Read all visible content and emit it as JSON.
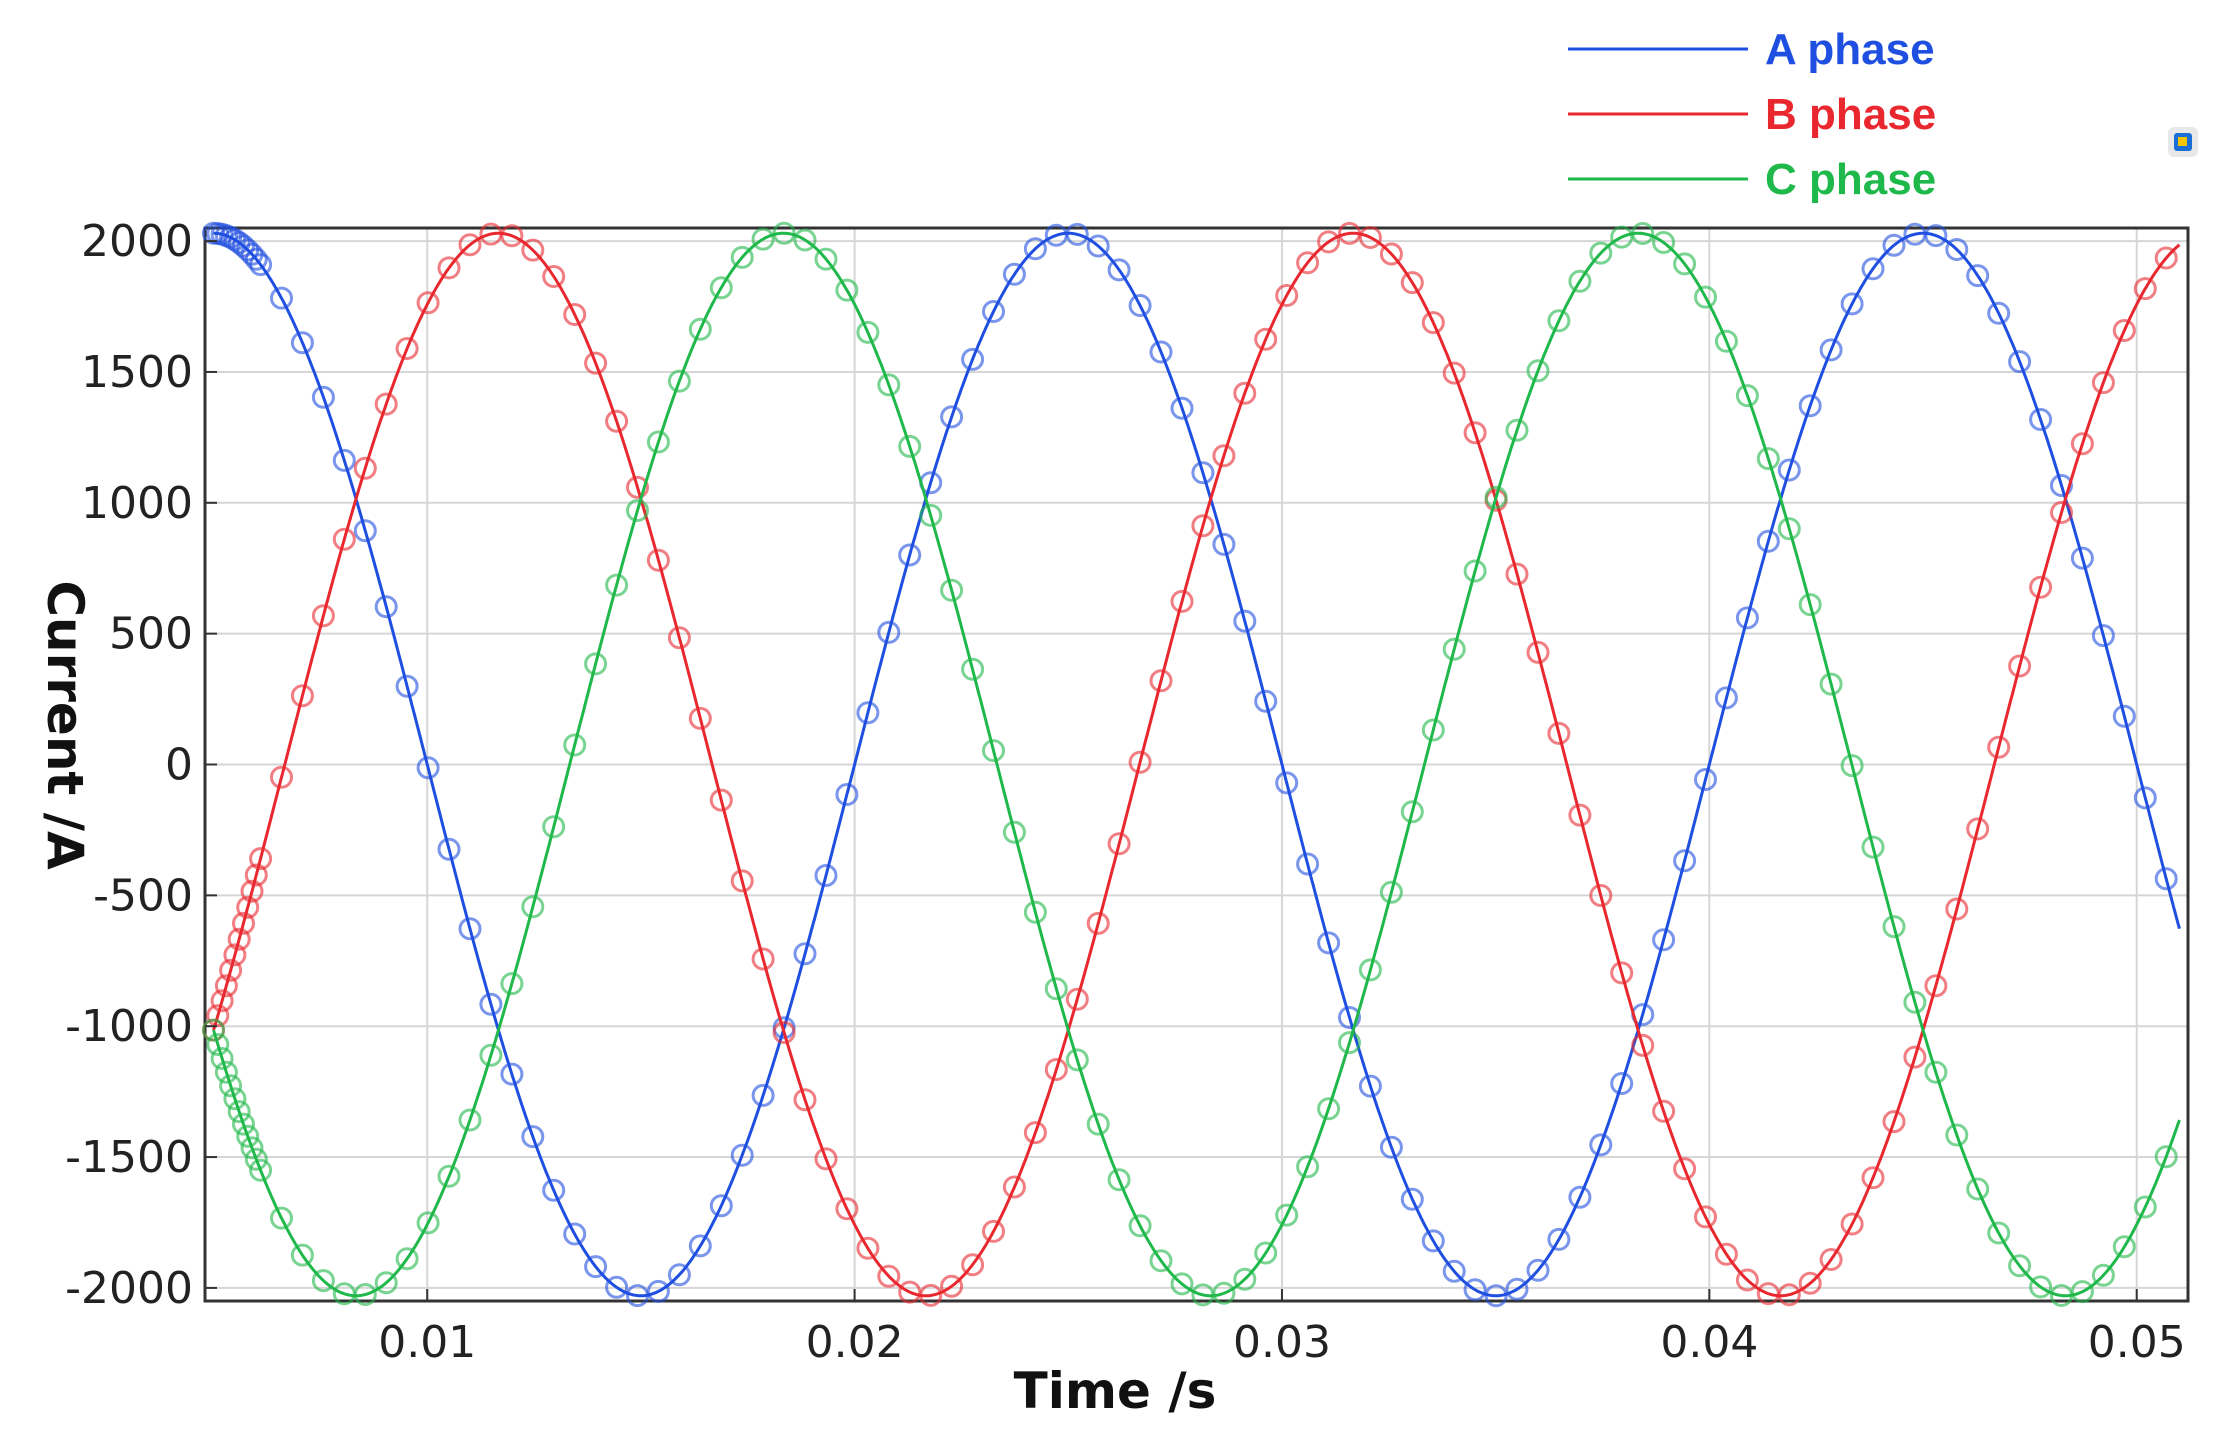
{
  "chart_data": {
    "type": "line",
    "title": "",
    "xlabel": "Time  /s",
    "ylabel": "Current /A",
    "xlim": [
      0.0048,
      0.0512
    ],
    "ylim": [
      -2050,
      2050
    ],
    "x_ticks": [
      0.01,
      0.02,
      0.03,
      0.04,
      0.05
    ],
    "x_tick_labels": [
      "0.01",
      "0.02",
      "0.03",
      "0.04",
      "0.05"
    ],
    "y_ticks": [
      2000,
      1500,
      1000,
      500,
      0,
      -500,
      -1000,
      -1500,
      -2000
    ],
    "y_tick_labels": [
      "2000",
      "1500",
      "1000",
      "500",
      "0",
      "-500",
      "-1000",
      "-1500",
      "-2000"
    ],
    "grid": true,
    "legend_position": "top-right",
    "x_range": [
      0.005,
      0.051
    ],
    "series": [
      {
        "name": "A phase",
        "color": "#1f4fe0",
        "amplitude": 2030,
        "frequency": 50,
        "phase_deg": 0,
        "marker": "open-circle"
      },
      {
        "name": "B phase",
        "color": "#e8282e",
        "amplitude": 2030,
        "frequency": 50,
        "phase_deg": -120,
        "marker": "open-circle"
      },
      {
        "name": "C phase",
        "color": "#1fb84a",
        "amplitude": 2030,
        "frequency": 50,
        "phase_deg": 120,
        "marker": "open-circle"
      }
    ]
  }
}
